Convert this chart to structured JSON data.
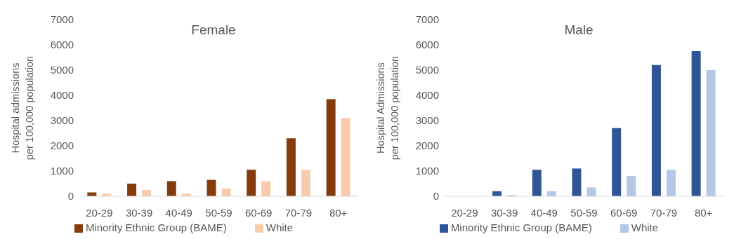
{
  "chart_data": [
    {
      "type": "bar",
      "title": "Female",
      "ylabel": "Hospital admissions per 100,000 population",
      "categories": [
        "20-29",
        "30-39",
        "40-49",
        "50-59",
        "60-69",
        "70-79",
        "80+"
      ],
      "series": [
        {
          "name": "Minority Ethnic Group (BAME)",
          "color": "#843c0c",
          "values": [
            150,
            500,
            600,
            650,
            1050,
            2300,
            3850
          ]
        },
        {
          "name": "White",
          "color": "#f8cbad",
          "values": [
            100,
            250,
            100,
            300,
            600,
            1050,
            3100
          ]
        }
      ],
      "ylim": [
        0,
        7000
      ],
      "yticks": [
        0,
        1000,
        2000,
        3000,
        4000,
        5000,
        6000,
        7000
      ],
      "grid": false,
      "legend": "bottom"
    },
    {
      "type": "bar",
      "title": "Male",
      "ylabel": "Hospital Admissions per 100,000 population",
      "categories": [
        "20-29",
        "30-39",
        "40-49",
        "50-59",
        "60-69",
        "70-79",
        "80+"
      ],
      "series": [
        {
          "name": "Minority Ethnic Group (BAME)",
          "color": "#2f5597",
          "values": [
            0,
            200,
            1050,
            1100,
            2700,
            5200,
            5750
          ]
        },
        {
          "name": "White",
          "color": "#b4c7e7",
          "values": [
            0,
            50,
            200,
            350,
            800,
            1050,
            5000
          ]
        }
      ],
      "ylim": [
        0,
        7000
      ],
      "yticks": [
        0,
        1000,
        2000,
        3000,
        4000,
        5000,
        6000,
        7000
      ],
      "grid": false,
      "legend": "bottom"
    }
  ]
}
